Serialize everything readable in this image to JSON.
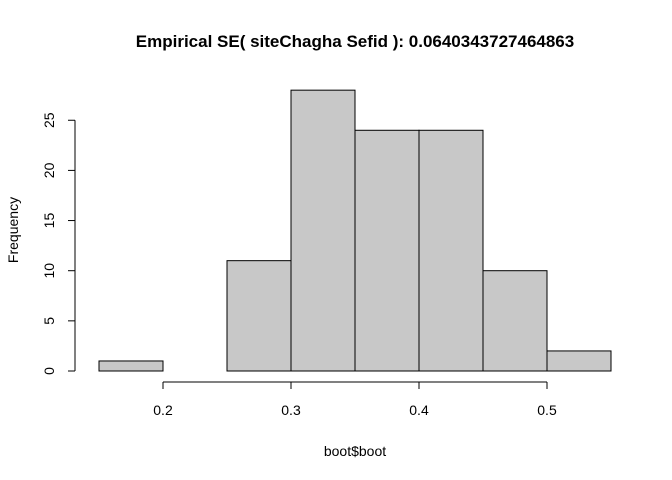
{
  "chart_data": {
    "type": "bar",
    "title": "Empirical SE( siteChagha Sefid ):  0.0640343727464863",
    "xlabel": "boot$boot",
    "ylabel": "Frequency",
    "bins": [
      {
        "start": 0.15,
        "end": 0.2,
        "count": 1
      },
      {
        "start": 0.2,
        "end": 0.25,
        "count": 0
      },
      {
        "start": 0.25,
        "end": 0.3,
        "count": 11
      },
      {
        "start": 0.3,
        "end": 0.35,
        "count": 28
      },
      {
        "start": 0.35,
        "end": 0.4,
        "count": 24
      },
      {
        "start": 0.4,
        "end": 0.45,
        "count": 24
      },
      {
        "start": 0.45,
        "end": 0.5,
        "count": 10
      },
      {
        "start": 0.5,
        "end": 0.55,
        "count": 2
      }
    ],
    "xlim": [
      0.15,
      0.55
    ],
    "ylim": [
      0,
      28
    ],
    "x_ticks": [
      "0.2",
      "0.3",
      "0.4",
      "0.5"
    ],
    "x_tick_values": [
      0.2,
      0.3,
      0.4,
      0.5
    ],
    "y_ticks": [
      "0",
      "5",
      "10",
      "15",
      "20",
      "25"
    ],
    "y_tick_values": [
      0,
      5,
      10,
      15,
      20,
      25
    ],
    "bar_fill": "#c8c8c8",
    "bar_stroke": "#000000",
    "grid": false,
    "legend": "none"
  }
}
